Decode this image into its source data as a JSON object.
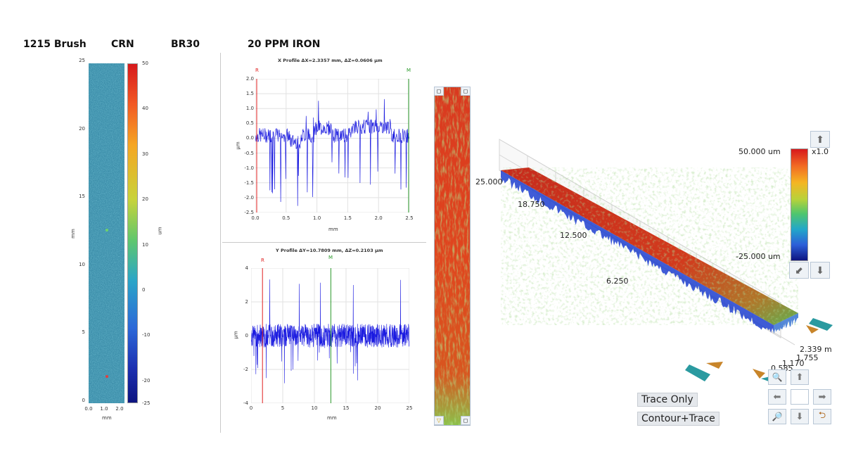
{
  "header": {
    "sample": "1215 Brush",
    "coating": "CRN",
    "brush": "BR30",
    "solution": "20 PPM IRON"
  },
  "map2d": {
    "y_ticks": [
      "25",
      "20",
      "15",
      "10",
      "5",
      "0"
    ],
    "x_ticks": [
      "0.0",
      "1.0",
      "2.0"
    ],
    "x_unit": "mm",
    "y_unit": "mm",
    "colorbar_ticks": [
      "50",
      "40",
      "30",
      "20",
      "10",
      "0",
      "-10",
      "-20",
      "-25"
    ],
    "colorbar_unit": "um"
  },
  "x_profile": {
    "title": "X Profile  ΔX=2.3357 mm, ΔZ=0.0606 µm",
    "marker_left": "R",
    "marker_right": "M",
    "y_ticks": [
      "2.0",
      "1.5",
      "1.0",
      "0.5",
      "0.0",
      "-0.5",
      "-1.0",
      "-1.5",
      "-2.0",
      "-2.5"
    ],
    "x_ticks": [
      "0.0",
      "0.5",
      "1.0",
      "1.5",
      "2.0",
      "2.5"
    ],
    "ylabel": "µm",
    "xlabel": "mm"
  },
  "y_profile": {
    "title": "Y Profile  ΔY=10.7809 mm, ΔZ=0.2103 µm",
    "marker_left": "R",
    "marker_right": "M",
    "y_ticks": [
      "4",
      "2",
      "0",
      "-2",
      "-4"
    ],
    "x_ticks": [
      "0",
      "5",
      "10",
      "15",
      "20",
      "25"
    ],
    "ylabel": "µm",
    "xlabel": "mm"
  },
  "view3d": {
    "axis_labels": [
      "25.000",
      "18.750",
      "12.500",
      "6.250"
    ],
    "right_axis": [
      "2.339 m",
      "1.755",
      "1.170",
      "0.585"
    ],
    "colorbar_max": "50.000 um",
    "colorbar_min": "-25.000 um",
    "zoom": "x1.0"
  },
  "controls": {
    "trace_only": "Trace Only",
    "contour_trace": "Contour+Trace"
  }
}
